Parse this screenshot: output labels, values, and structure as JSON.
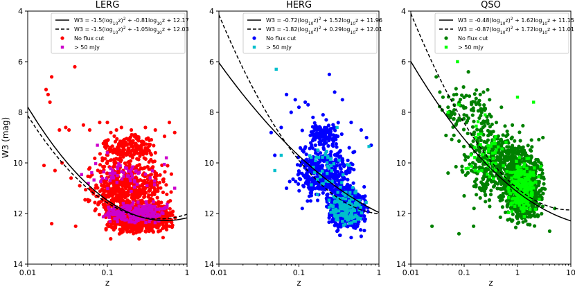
{
  "chart_data": [
    {
      "type": "scatter",
      "title": "LERG",
      "xlabel": "z",
      "ylabel": "W3 (mag)",
      "xscale": "log",
      "xlim": [
        0.01,
        1
      ],
      "ylim": [
        4,
        14
      ],
      "y_inverted": true,
      "xticks": [
        0.01,
        0.1,
        1
      ],
      "xtick_labels": [
        "0.01",
        "0.1",
        "1"
      ],
      "yticks": [
        4,
        6,
        8,
        10,
        12,
        14
      ],
      "ytick_labels": [
        "4",
        "6",
        "8",
        "10",
        "12",
        "14"
      ],
      "legend_position": "top-right",
      "fits": [
        {
          "label": "W3 = -1.5(log$_{10}$z)$^2$ + -0.81log$_{10}$z + 12.17",
          "a": -1.5,
          "b": -0.81,
          "c": 12.17,
          "style": "solid"
        },
        {
          "label": "W3 = -1.5(log$_{10}$z)$^2$ + -1.05log$_{10}$z + 12.03",
          "a": -1.5,
          "b": -1.05,
          "c": 12.03,
          "style": "dashed"
        }
      ],
      "series": [
        {
          "name": "No flux cut",
          "marker": "circle",
          "color": "#ff0000",
          "count": 1900,
          "points": [
            [
              0.017,
              7.1
            ],
            [
              0.018,
              7.3
            ],
            [
              0.019,
              7.6
            ],
            [
              0.02,
              6.6
            ],
            [
              0.039,
              6.2
            ],
            [
              0.025,
              8.7
            ],
            [
              0.03,
              8.6
            ],
            [
              0.033,
              8.7
            ],
            [
              0.02,
              12.4
            ],
            [
              0.04,
              12.5
            ],
            [
              0.05,
              8.5
            ],
            [
              0.06,
              8.7
            ],
            [
              0.08,
              8.4
            ],
            [
              0.1,
              8.4
            ],
            [
              0.13,
              8.7
            ],
            [
              0.15,
              8.6
            ],
            [
              0.2,
              8.7
            ],
            [
              0.3,
              8.6
            ],
            [
              0.4,
              8.7
            ],
            [
              0.6,
              8.4
            ],
            [
              0.7,
              8.8
            ],
            [
              0.016,
              10.1
            ],
            [
              0.022,
              10.3
            ],
            [
              0.027,
              10.0
            ],
            [
              0.035,
              10.6
            ],
            [
              0.045,
              10.9
            ],
            [
              0.11,
              13.0
            ],
            [
              0.25,
              13.0
            ],
            [
              0.5,
              12.95
            ]
          ]
        },
        {
          "name": " > 50 mJy",
          "marker": "square",
          "color": "#cc00cc",
          "count": 300
        }
      ],
      "cloud": [
        {
          "x": [
            0.08,
            0.8
          ],
          "y": [
            11.5,
            12.9
          ],
          "n": 1000
        },
        {
          "x": [
            0.04,
            0.8
          ],
          "y": [
            9.5,
            12.6
          ],
          "n": 600
        },
        {
          "x": [
            0.06,
            0.6
          ],
          "y": [
            8.6,
            10.3
          ],
          "n": 200
        }
      ],
      "marker_cloud": [
        {
          "x": [
            0.06,
            0.8
          ],
          "y": [
            11.4,
            12.6
          ],
          "n": 220
        },
        {
          "x": [
            0.04,
            0.6
          ],
          "y": [
            9.8,
            11.2
          ],
          "n": 60
        }
      ],
      "fixed_markers": [
        [
          0.075,
          9.3
        ],
        [
          0.1,
          9.6
        ],
        [
          0.55,
          9.8
        ],
        [
          0.7,
          11.0
        ]
      ]
    },
    {
      "type": "scatter",
      "title": "HERG",
      "xlabel": "z",
      "ylabel": "",
      "xscale": "log",
      "xlim": [
        0.01,
        1
      ],
      "ylim": [
        4,
        14
      ],
      "y_inverted": true,
      "xticks": [
        0.01,
        0.1,
        1
      ],
      "xtick_labels": [
        "0.01",
        "0.1",
        "1"
      ],
      "yticks": [
        4,
        6,
        8,
        10,
        12,
        14
      ],
      "ytick_labels": [
        "4",
        "6",
        "8",
        "10",
        "12",
        "14"
      ],
      "legend_position": "top-right",
      "fits": [
        {
          "label": "W3 = -0.72(log$_{10}$z)$^2$ + 1.52log$_{10}$z + 11.96",
          "a": -0.72,
          "b": 1.52,
          "c": 11.96,
          "style": "solid"
        },
        {
          "label": "W3 = -1.82(log$_{10}$z)$^2$ + 0.29log$_{10}$z + 12.01",
          "a": -1.82,
          "b": 0.29,
          "c": 12.01,
          "style": "dashed"
        }
      ],
      "series": [
        {
          "name": "No flux cut",
          "marker": "circle",
          "color": "#0000ff",
          "count": 1300,
          "points": [
            [
              0.05,
              9.7
            ],
            [
              0.045,
              8.8
            ],
            [
              0.06,
              8.6
            ],
            [
              0.07,
              7.3
            ],
            [
              0.08,
              8.0
            ],
            [
              0.09,
              7.5
            ],
            [
              0.1,
              7.8
            ],
            [
              0.12,
              7.6
            ],
            [
              0.13,
              7.7
            ],
            [
              0.15,
              8.2
            ],
            [
              0.24,
              6.5
            ],
            [
              0.28,
              7.2
            ],
            [
              0.35,
              7.5
            ],
            [
              0.45,
              8.4
            ],
            [
              0.6,
              8.7
            ],
            [
              0.7,
              9.0
            ],
            [
              0.8,
              9.3
            ],
            [
              0.2,
              8.1
            ],
            [
              0.11,
              11.8
            ],
            [
              0.14,
              11.5
            ],
            [
              0.3,
              12.7
            ],
            [
              0.45,
              12.95
            ],
            [
              0.6,
              12.9
            ],
            [
              0.07,
              11.0
            ]
          ]
        },
        {
          "name": " > 50 mJy",
          "marker": "square",
          "color": "#00bfcc",
          "count": 240
        }
      ],
      "cloud": [
        {
          "x": [
            0.2,
            0.8
          ],
          "y": [
            10.6,
            12.9
          ],
          "n": 650
        },
        {
          "x": [
            0.07,
            0.6
          ],
          "y": [
            9.0,
            11.8
          ],
          "n": 450
        },
        {
          "x": [
            0.1,
            0.4
          ],
          "y": [
            8.2,
            9.6
          ],
          "n": 120
        }
      ],
      "marker_cloud": [
        {
          "x": [
            0.2,
            0.8
          ],
          "y": [
            10.8,
            12.8
          ],
          "n": 150
        },
        {
          "x": [
            0.08,
            0.5
          ],
          "y": [
            9.0,
            11.5
          ],
          "n": 40
        }
      ],
      "fixed_markers": [
        [
          0.052,
          6.3
        ],
        [
          0.3,
          8.6
        ],
        [
          0.75,
          9.35
        ],
        [
          0.05,
          10.3
        ],
        [
          0.06,
          9.7
        ]
      ]
    },
    {
      "type": "scatter",
      "title": "QSO",
      "xlabel": "z",
      "ylabel": "",
      "xscale": "log",
      "xlim": [
        0.01,
        10
      ],
      "ylim": [
        4,
        14
      ],
      "y_inverted": true,
      "xticks": [
        0.01,
        0.1,
        1,
        10
      ],
      "xtick_labels": [
        "0.01",
        "0.1",
        "1",
        "10"
      ],
      "yticks": [
        4,
        6,
        8,
        10,
        12,
        14
      ],
      "ytick_labels": [
        "4",
        "6",
        "8",
        "10",
        "12",
        "14"
      ],
      "legend_position": "top-right",
      "fits": [
        {
          "label": "W3 = -0.48(log$_{10}$z)$^2$ + 1.62log$_{10}$z + 11.15",
          "a": -0.48,
          "b": 1.62,
          "c": 11.15,
          "style": "solid"
        },
        {
          "label": "W3 = -0.87(log$_{10}$z)$^2$ + 1.72log$_{10}$z + 11.01",
          "a": -0.87,
          "b": 1.72,
          "c": 11.01,
          "style": "dashed"
        }
      ],
      "series": [
        {
          "name": "No flux cut",
          "marker": "circle",
          "color": "#008000",
          "count": 1500,
          "points": [
            [
              0.025,
              12.5
            ],
            [
              0.03,
              6.6
            ],
            [
              0.035,
              7.2
            ],
            [
              0.04,
              7.4
            ],
            [
              0.05,
              7.8
            ],
            [
              0.06,
              8.0
            ],
            [
              0.07,
              8.5
            ],
            [
              0.12,
              6.4
            ],
            [
              0.2,
              7.3
            ],
            [
              0.3,
              7.5
            ],
            [
              0.5,
              7.8
            ],
            [
              0.1,
              11.3
            ],
            [
              0.05,
              10.4
            ],
            [
              0.08,
              12.8
            ],
            [
              4,
              12.7
            ],
            [
              5,
              11.8
            ],
            [
              3,
              9.0
            ],
            [
              0.15,
              12.5
            ]
          ]
        },
        {
          "name": " > 50 mJy",
          "marker": "square",
          "color": "#00ff00",
          "count": 300
        }
      ],
      "cloud": [
        {
          "x": [
            0.4,
            4.0
          ],
          "y": [
            9.2,
            12.8
          ],
          "n": 900
        },
        {
          "x": [
            0.06,
            3.0
          ],
          "y": [
            8.0,
            12.0
          ],
          "n": 450
        },
        {
          "x": [
            0.03,
            0.6
          ],
          "y": [
            6.5,
            9.5
          ],
          "n": 100
        }
      ],
      "marker_cloud": [
        {
          "x": [
            0.5,
            3.0
          ],
          "y": [
            9.5,
            12.5
          ],
          "n": 230
        },
        {
          "x": [
            0.08,
            1.0
          ],
          "y": [
            8.0,
            11.0
          ],
          "n": 50
        }
      ],
      "fixed_markers": [
        [
          0.075,
          6.0
        ],
        [
          0.08,
          7.7
        ],
        [
          1.0,
          7.4
        ],
        [
          2.0,
          7.6
        ],
        [
          0.05,
          8.0
        ]
      ]
    }
  ]
}
